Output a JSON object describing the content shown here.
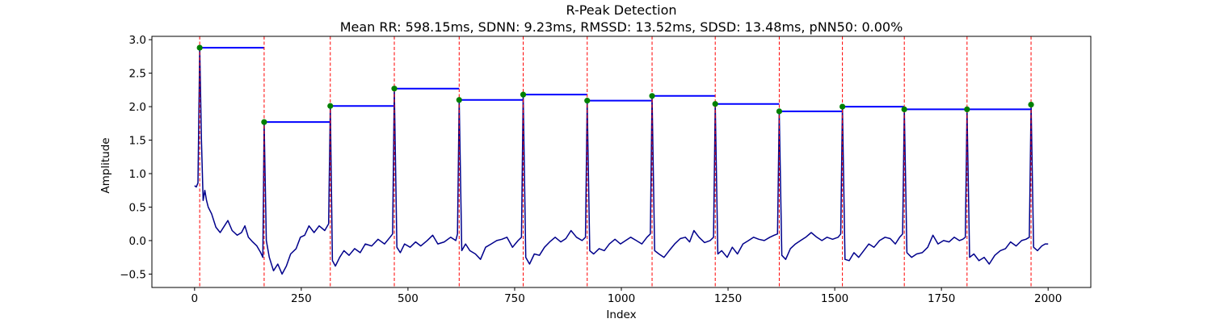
{
  "chart_data": {
    "type": "line",
    "title": "R-Peak Detection",
    "subtitle": "Mean RR: 598.15ms, SDNN: 9.23ms, RMSSD: 13.52ms, SDSD: 13.48ms, pNN50: 0.00%",
    "xlabel": "Index",
    "ylabel": "Amplitude",
    "xlim": [
      -100,
      2100
    ],
    "ylim": [
      -0.7,
      3.05
    ],
    "xticks": [
      0,
      250,
      500,
      750,
      1000,
      1250,
      1500,
      1750,
      2000
    ],
    "yticks": [
      -0.5,
      0.0,
      0.5,
      1.0,
      1.5,
      2.0,
      2.5,
      3.0
    ],
    "ytick_labels": [
      "−0.5",
      "0.0",
      "0.5",
      "1.0",
      "1.5",
      "2.0",
      "2.5",
      "3.0"
    ],
    "grid": false,
    "colors": {
      "signal": "#00008b",
      "peak_line": "#ff0000",
      "peak_marker": "#008000",
      "rr_segment": "#0000ff"
    },
    "r_peaks": [
      {
        "x": 12,
        "y": 2.88
      },
      {
        "x": 163,
        "y": 1.77
      },
      {
        "x": 318,
        "y": 2.01
      },
      {
        "x": 468,
        "y": 2.27
      },
      {
        "x": 620,
        "y": 2.1
      },
      {
        "x": 770,
        "y": 2.18
      },
      {
        "x": 920,
        "y": 2.09
      },
      {
        "x": 1072,
        "y": 2.16
      },
      {
        "x": 1220,
        "y": 2.04
      },
      {
        "x": 1370,
        "y": 1.93
      },
      {
        "x": 1518,
        "y": 2.0
      },
      {
        "x": 1663,
        "y": 1.96
      },
      {
        "x": 1810,
        "y": 1.96
      },
      {
        "x": 1960,
        "y": 2.03
      }
    ],
    "signal_points": [
      [
        0,
        0.82
      ],
      [
        4,
        0.8
      ],
      [
        8,
        0.86
      ],
      [
        12,
        2.88
      ],
      [
        16,
        1.5
      ],
      [
        20,
        0.6
      ],
      [
        24,
        0.75
      ],
      [
        28,
        0.6
      ],
      [
        32,
        0.5
      ],
      [
        40,
        0.4
      ],
      [
        50,
        0.2
      ],
      [
        60,
        0.12
      ],
      [
        70,
        0.22
      ],
      [
        78,
        0.3
      ],
      [
        88,
        0.15
      ],
      [
        100,
        0.08
      ],
      [
        110,
        0.12
      ],
      [
        118,
        0.22
      ],
      [
        126,
        0.05
      ],
      [
        136,
        -0.02
      ],
      [
        146,
        -0.08
      ],
      [
        155,
        -0.18
      ],
      [
        160,
        -0.25
      ],
      [
        163,
        1.77
      ],
      [
        168,
        0.0
      ],
      [
        175,
        -0.25
      ],
      [
        185,
        -0.45
      ],
      [
        195,
        -0.35
      ],
      [
        205,
        -0.5
      ],
      [
        215,
        -0.38
      ],
      [
        225,
        -0.2
      ],
      [
        238,
        -0.12
      ],
      [
        248,
        0.05
      ],
      [
        258,
        0.08
      ],
      [
        268,
        0.22
      ],
      [
        280,
        0.12
      ],
      [
        292,
        0.22
      ],
      [
        305,
        0.15
      ],
      [
        314,
        0.25
      ],
      [
        318,
        2.01
      ],
      [
        323,
        -0.3
      ],
      [
        330,
        -0.38
      ],
      [
        340,
        -0.25
      ],
      [
        350,
        -0.15
      ],
      [
        362,
        -0.22
      ],
      [
        375,
        -0.12
      ],
      [
        388,
        -0.18
      ],
      [
        400,
        -0.05
      ],
      [
        415,
        -0.08
      ],
      [
        430,
        0.02
      ],
      [
        445,
        -0.05
      ],
      [
        458,
        0.05
      ],
      [
        464,
        0.1
      ],
      [
        468,
        2.27
      ],
      [
        474,
        -0.1
      ],
      [
        482,
        -0.18
      ],
      [
        492,
        -0.05
      ],
      [
        505,
        -0.1
      ],
      [
        518,
        -0.02
      ],
      [
        530,
        -0.08
      ],
      [
        545,
        0.0
      ],
      [
        558,
        0.08
      ],
      [
        570,
        -0.05
      ],
      [
        585,
        -0.02
      ],
      [
        600,
        0.05
      ],
      [
        612,
        0.0
      ],
      [
        616,
        0.1
      ],
      [
        620,
        2.1
      ],
      [
        626,
        -0.15
      ],
      [
        635,
        -0.05
      ],
      [
        645,
        -0.15
      ],
      [
        658,
        -0.2
      ],
      [
        670,
        -0.28
      ],
      [
        682,
        -0.1
      ],
      [
        695,
        -0.05
      ],
      [
        708,
        0.0
      ],
      [
        720,
        0.02
      ],
      [
        732,
        0.05
      ],
      [
        745,
        -0.1
      ],
      [
        758,
        0.0
      ],
      [
        766,
        0.05
      ],
      [
        770,
        2.18
      ],
      [
        776,
        -0.25
      ],
      [
        785,
        -0.35
      ],
      [
        796,
        -0.2
      ],
      [
        808,
        -0.22
      ],
      [
        820,
        -0.1
      ],
      [
        832,
        -0.02
      ],
      [
        845,
        0.05
      ],
      [
        858,
        -0.02
      ],
      [
        870,
        0.03
      ],
      [
        882,
        0.15
      ],
      [
        895,
        0.05
      ],
      [
        908,
        0.0
      ],
      [
        916,
        0.05
      ],
      [
        920,
        2.09
      ],
      [
        926,
        -0.15
      ],
      [
        935,
        -0.2
      ],
      [
        948,
        -0.12
      ],
      [
        960,
        -0.15
      ],
      [
        972,
        -0.05
      ],
      [
        985,
        0.02
      ],
      [
        998,
        -0.05
      ],
      [
        1010,
        0.0
      ],
      [
        1022,
        0.05
      ],
      [
        1035,
        0.0
      ],
      [
        1048,
        -0.05
      ],
      [
        1060,
        0.05
      ],
      [
        1068,
        0.1
      ],
      [
        1072,
        2.16
      ],
      [
        1078,
        -0.15
      ],
      [
        1088,
        -0.2
      ],
      [
        1100,
        -0.25
      ],
      [
        1112,
        -0.15
      ],
      [
        1125,
        -0.05
      ],
      [
        1138,
        0.03
      ],
      [
        1150,
        0.05
      ],
      [
        1160,
        -0.02
      ],
      [
        1170,
        0.15
      ],
      [
        1182,
        0.05
      ],
      [
        1195,
        -0.03
      ],
      [
        1208,
        0.0
      ],
      [
        1216,
        0.05
      ],
      [
        1220,
        2.04
      ],
      [
        1226,
        -0.2
      ],
      [
        1235,
        -0.15
      ],
      [
        1248,
        -0.25
      ],
      [
        1260,
        -0.1
      ],
      [
        1272,
        -0.2
      ],
      [
        1285,
        -0.05
      ],
      [
        1298,
        0.0
      ],
      [
        1310,
        0.05
      ],
      [
        1322,
        0.02
      ],
      [
        1335,
        0.0
      ],
      [
        1348,
        0.05
      ],
      [
        1358,
        0.08
      ],
      [
        1366,
        0.1
      ],
      [
        1370,
        1.93
      ],
      [
        1376,
        -0.22
      ],
      [
        1385,
        -0.28
      ],
      [
        1396,
        -0.12
      ],
      [
        1408,
        -0.05
      ],
      [
        1420,
        0.0
      ],
      [
        1432,
        0.05
      ],
      [
        1445,
        0.12
      ],
      [
        1458,
        0.05
      ],
      [
        1470,
        0.0
      ],
      [
        1482,
        0.05
      ],
      [
        1495,
        0.02
      ],
      [
        1508,
        0.05
      ],
      [
        1514,
        0.1
      ],
      [
        1518,
        2.0
      ],
      [
        1524,
        -0.28
      ],
      [
        1534,
        -0.3
      ],
      [
        1545,
        -0.18
      ],
      [
        1556,
        -0.25
      ],
      [
        1568,
        -0.15
      ],
      [
        1580,
        -0.05
      ],
      [
        1592,
        -0.1
      ],
      [
        1605,
        0.0
      ],
      [
        1618,
        0.05
      ],
      [
        1630,
        0.03
      ],
      [
        1642,
        -0.05
      ],
      [
        1652,
        0.05
      ],
      [
        1659,
        0.1
      ],
      [
        1663,
        1.96
      ],
      [
        1669,
        -0.18
      ],
      [
        1680,
        -0.25
      ],
      [
        1692,
        -0.2
      ],
      [
        1705,
        -0.18
      ],
      [
        1718,
        -0.1
      ],
      [
        1730,
        0.08
      ],
      [
        1742,
        -0.05
      ],
      [
        1755,
        0.0
      ],
      [
        1768,
        -0.02
      ],
      [
        1780,
        0.05
      ],
      [
        1792,
        0.0
      ],
      [
        1800,
        0.02
      ],
      [
        1806,
        0.05
      ],
      [
        1810,
        1.96
      ],
      [
        1816,
        -0.25
      ],
      [
        1826,
        -0.2
      ],
      [
        1838,
        -0.3
      ],
      [
        1850,
        -0.25
      ],
      [
        1862,
        -0.35
      ],
      [
        1875,
        -0.22
      ],
      [
        1888,
        -0.15
      ],
      [
        1900,
        -0.12
      ],
      [
        1912,
        -0.02
      ],
      [
        1925,
        -0.08
      ],
      [
        1938,
        0.0
      ],
      [
        1948,
        0.02
      ],
      [
        1956,
        0.05
      ],
      [
        1960,
        2.03
      ],
      [
        1966,
        -0.1
      ],
      [
        1975,
        -0.15
      ],
      [
        1985,
        -0.08
      ],
      [
        1993,
        -0.05
      ],
      [
        2000,
        -0.05
      ]
    ]
  }
}
